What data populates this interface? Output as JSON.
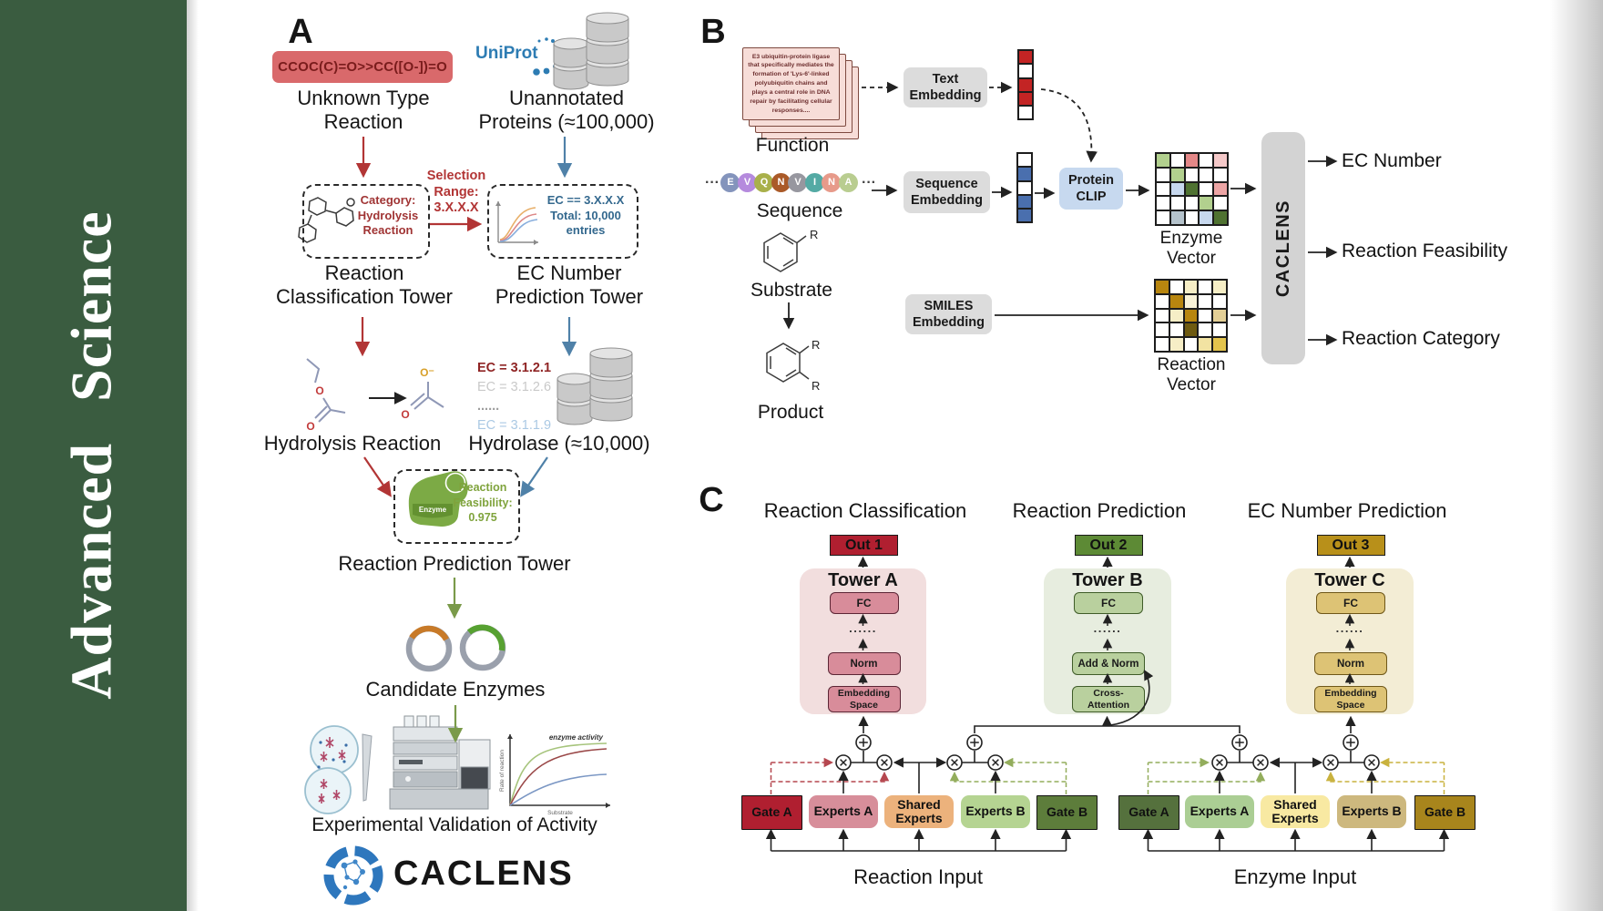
{
  "sidebar": {
    "title": "Advanced  Science",
    "bg": "#3a5c40"
  },
  "panel_a": {
    "label": "A",
    "smiles": "CCOC(C)=O>>CC([O-])=O",
    "unknown_reaction": [
      "Unknown Type",
      "Reaction"
    ],
    "uniprot": "UniProt",
    "unannotated": [
      "Unannotated",
      "Proteins (≈100,000)"
    ],
    "selection": [
      "Selection",
      "Range:",
      "3.X.X.X"
    ],
    "category_box": [
      "Category:",
      "Hydrolysis",
      "Reaction"
    ],
    "ec_filter_box": [
      "EC == 3.X.X.X",
      "Total: 10,000",
      "entries"
    ],
    "classification_tower": [
      "Reaction",
      "Classification Tower"
    ],
    "ec_tower": [
      "EC Number",
      "Prediction Tower"
    ],
    "hydrolysis_label": "Hydrolysis Reaction",
    "hydrolase_label": "Hydrolase (≈10,000)",
    "ec_list": [
      {
        "text": "EC = 3.1.2.1",
        "color": "#8f2424",
        "bold": true
      },
      {
        "text": "EC = 3.1.2.6",
        "color": "#c9c9c9",
        "bold": false
      },
      {
        "text": "......",
        "color": "#9d9d9d",
        "bold": true
      },
      {
        "text": "EC = 3.1.1.9",
        "color": "#abc9e4",
        "bold": false
      }
    ],
    "enzyme_badge": "Enzyme",
    "feasibility": [
      "Reaction",
      "Feasibility:",
      "0.975"
    ],
    "prediction_tower": "Reaction Prediction Tower",
    "candidate": "Candidate Enzymes",
    "validation": "Experimental Validation of Activity",
    "activity_plot": {
      "curve_label": "enzyme activity",
      "ylabel": "Rate of reaction",
      "xlabel": "Substrate"
    },
    "atoms": {
      "o": "O",
      "o_minus": "O⁻"
    },
    "brand": "CACLENS"
  },
  "panel_b": {
    "label": "B",
    "function_card": "E3 ubiquitin-protein ligase that specifically mediates the formation of 'Lys-6'-linked polyubiquitin chains and plays a central role in DNA repair by facilitating cellular responses....",
    "function_label": "Function",
    "ellipsis": "···",
    "residues": [
      {
        "letter": "E",
        "color": "#8494bc"
      },
      {
        "letter": "V",
        "color": "#b58add"
      },
      {
        "letter": "Q",
        "color": "#a9b04a"
      },
      {
        "letter": "N",
        "color": "#aa5a28"
      },
      {
        "letter": "V",
        "color": "#97979f"
      },
      {
        "letter": "I",
        "color": "#54aaa4"
      },
      {
        "letter": "N",
        "color": "#e79a8a"
      },
      {
        "letter": "A",
        "color": "#b9cd90"
      }
    ],
    "sequence_label": "Sequence",
    "substrate_label": "Substrate",
    "product_label": "Product",
    "r_label": "R",
    "text_embedding": [
      "Text",
      "Embedding"
    ],
    "sequence_embedding": [
      "Sequence",
      "Embedding"
    ],
    "smiles_embedding": [
      "SMILES",
      "Embedding"
    ],
    "protein_clip": [
      "Protein",
      "CLIP"
    ],
    "text_vector": [
      "#c32424",
      "#ffffff",
      "#c32424",
      "#c32424",
      "#ffffff"
    ],
    "sequence_vector": [
      "#ffffff",
      "#4a6fae",
      "#ffffff",
      "#4a6fae",
      "#4a6fae"
    ],
    "enzyme_vector_label": "Enzyme Vector",
    "reaction_vector_label": "Reaction Vector",
    "enzyme_matrix": [
      [
        "#b2d08e",
        "#ffffff",
        "#e38787",
        "#ffffff",
        "#f5c9c9"
      ],
      [
        "#ffffff",
        "#b2d08e",
        "#ffffff",
        "#ffffff",
        "#ffffff"
      ],
      [
        "#ffffff",
        "#c7d8ee",
        "#4f7231",
        "#ffffff",
        "#eda5a5"
      ],
      [
        "#ffffff",
        "#ffffff",
        "#ffffff",
        "#b2d08e",
        "#ffffff"
      ],
      [
        "#ffffff",
        "#b5c3cc",
        "#ffffff",
        "#c7d8ee",
        "#4f7231"
      ]
    ],
    "reaction_matrix": [
      [
        "#b8860f",
        "#ffffff",
        "#f6eec6",
        "#ffffff",
        "#f6eec6"
      ],
      [
        "#ffffff",
        "#b8860f",
        "#f9f3d8",
        "#ffffff",
        "#ffffff"
      ],
      [
        "#ffffff",
        "#f6eec6",
        "#b8860f",
        "#ffffff",
        "#e3cf96"
      ],
      [
        "#ffffff",
        "#ffffff",
        "#6e5a10",
        "#ffffff",
        "#ffffff"
      ],
      [
        "#ffffff",
        "#f6eec6",
        "#ffffff",
        "#f2e3a2",
        "#e3c44c"
      ]
    ],
    "caclens": "CACLENS",
    "outputs": [
      "EC Number",
      "Reaction Feasibility",
      "Reaction Category"
    ]
  },
  "panel_c": {
    "label": "C",
    "headers": [
      "Reaction Classification",
      "Reaction Prediction",
      "EC Number Prediction"
    ],
    "outs": [
      {
        "label": "Out 1",
        "bg": "#b01f30"
      },
      {
        "label": "Out 2",
        "bg": "#5d8a35"
      },
      {
        "label": "Out 3",
        "bg": "#b8901a"
      }
    ],
    "towers": [
      {
        "title": "Tower A",
        "panel": "#f2dede",
        "box": "#d88c9a",
        "border": "#5c2535",
        "fc": "FC",
        "dots": "......",
        "mid": "Norm",
        "bottom": [
          "Embedding",
          "Space"
        ]
      },
      {
        "title": "Tower B",
        "panel": "#e7eddf",
        "box": "#b9d09e",
        "border": "#3f5c28",
        "fc": "FC",
        "dots": "......",
        "mid": "Add & Norm",
        "bottom": [
          "Cross-",
          "Attention"
        ]
      },
      {
        "title": "Tower C",
        "panel": "#f3edd5",
        "box": "#ddc375",
        "border": "#6e5718",
        "fc": "FC",
        "dots": "......",
        "mid": "Norm",
        "bottom": [
          "Embedding",
          "Space"
        ]
      }
    ],
    "moe_left": {
      "input": "Reaction Input",
      "boxes": [
        {
          "label": "Gate A",
          "bg": "#b01f30",
          "gate": true
        },
        {
          "label": "Experts A",
          "bg": "#d78e9a",
          "gate": false
        },
        {
          "label": [
            "Shared",
            "Experts"
          ],
          "bg": "#ecb27c",
          "gate": false
        },
        {
          "label": "Experts B",
          "bg": "#b5d492",
          "gate": false
        },
        {
          "label": "Gate B",
          "bg": "#5d7d3b",
          "gate": true
        }
      ]
    },
    "moe_right": {
      "input": "Enzyme Input",
      "boxes": [
        {
          "label": "Gate A",
          "bg": "#55713d",
          "gate": true
        },
        {
          "label": "Experts A",
          "bg": "#abce94",
          "gate": false
        },
        {
          "label": [
            "Shared",
            "Experts"
          ],
          "bg": "#f8e9a2",
          "gate": false
        },
        {
          "label": "Experts B",
          "bg": "#cdb87e",
          "gate": false
        },
        {
          "label": "Gate B",
          "bg": "#a8851c",
          "gate": true
        }
      ]
    }
  }
}
